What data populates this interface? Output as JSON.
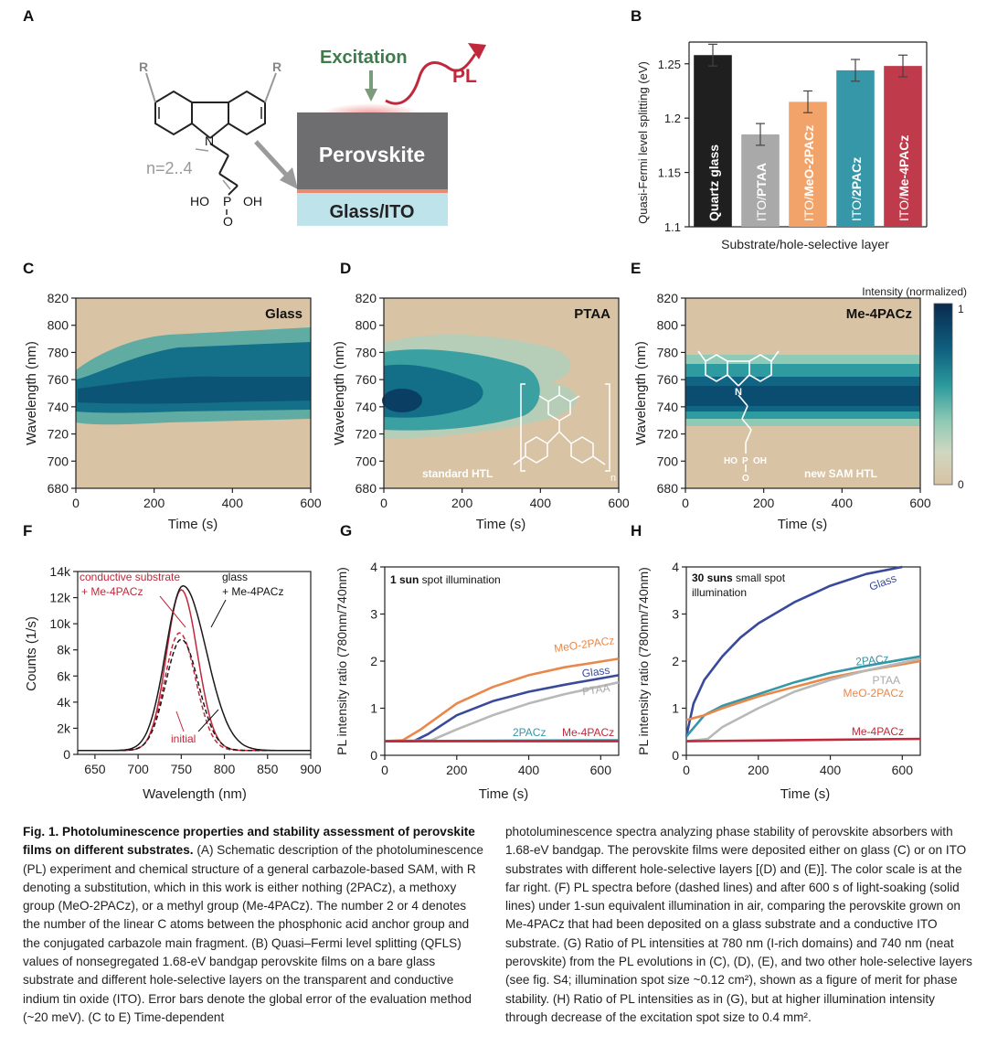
{
  "panels": {
    "A": "A",
    "B": "B",
    "C": "C",
    "D": "D",
    "E": "E",
    "F": "F",
    "G": "G",
    "H": "H"
  },
  "panelA": {
    "excitation": "Excitation",
    "pl": "PL",
    "perovskite": "Perovskite",
    "glass_ito": "Glass/ITO",
    "r_left": "R",
    "r_right": "R",
    "n_label": "n=2..4",
    "nitrogen": "N",
    "ho_left": "HO",
    "p": "P",
    "oh_right": "OH",
    "o_bottom": "O",
    "colors": {
      "excitation": "#3f7a4a",
      "pl": "#c0283b",
      "perovskite": "#6e6e70",
      "glass": "#bfe3ea"
    }
  },
  "panelB": {
    "ylabel": "Quasi-Fermi level splitting (eV)",
    "xlabel": "Substrate/hole-selective layer",
    "yticks": [
      "1.1",
      "1.15",
      "1.2",
      "1.25"
    ]
  },
  "heatmaps": {
    "ylabel": "Wavelength (nm)",
    "xlabel": "Time (s)",
    "yticks": [
      "820",
      "800",
      "780",
      "760",
      "740",
      "720",
      "700",
      "680"
    ],
    "xticks": [
      "0",
      "200",
      "400",
      "600"
    ],
    "C": {
      "title": "Glass"
    },
    "D": {
      "title": "PTAA",
      "note": "standard HTL",
      "subscript": "n"
    },
    "E": {
      "title": "Me-4PACz",
      "note": "new SAM HTL",
      "sam_n": "N",
      "sam_ho": "HO",
      "sam_p": "P",
      "sam_oh": "OH",
      "sam_o": "O"
    },
    "colorbar": {
      "label": "Intensity (normalized)",
      "max": "1",
      "min": "0"
    }
  },
  "panelF": {
    "ylabel": "Counts (1/s)",
    "xlabel": "Wavelength (nm)",
    "yticks": [
      "0",
      "2k",
      "4k",
      "6k",
      "8k",
      "10k",
      "12k",
      "14k"
    ],
    "xticks": [
      "650",
      "700",
      "750",
      "800",
      "850",
      "900"
    ],
    "label_conductive_1": "conductive substrate",
    "label_conductive_2": "+ Me-4PACz",
    "label_glass_1": "glass",
    "label_glass_2": "+ Me-4PACz",
    "label_initial": "initial"
  },
  "panelG": {
    "ylabel": "PL intensity ratio (780nm/740nm)",
    "xlabel": "Time (s)",
    "yticks": [
      "0",
      "1",
      "2",
      "3",
      "4"
    ],
    "xticks": [
      "0",
      "200",
      "400",
      "600"
    ],
    "note_bold": "1 sun",
    "note_rest": " spot illumination"
  },
  "panelH": {
    "ylabel": "PL intensity ratio (780nm/740nm)",
    "xlabel": "Time (s)",
    "yticks": [
      "0",
      "1",
      "2",
      "3",
      "4"
    ],
    "xticks": [
      "0",
      "200",
      "400",
      "600"
    ],
    "note_bold": "30 suns",
    "note_rest": " small spot",
    "note_line2": "illumination"
  },
  "chart_data": [
    {
      "panel": "B",
      "type": "bar",
      "ylim": [
        1.1,
        1.27
      ],
      "categories": [
        "Quartz glass",
        "ITO/PTAA",
        "ITO/MeO-2PACz",
        "ITO/2PACz",
        "ITO/Me-4PACz"
      ],
      "values": [
        1.258,
        1.185,
        1.215,
        1.244,
        1.248
      ],
      "errors": [
        0.01,
        0.01,
        0.01,
        0.01,
        0.01
      ],
      "colors": [
        "#1f1f1f",
        "#a9a9a9",
        "#f2a36a",
        "#3597a8",
        "#bf3a4a"
      ]
    },
    {
      "panel": "F",
      "type": "line",
      "xlim": [
        630,
        900
      ],
      "ylim": [
        0,
        14000
      ],
      "series": [
        {
          "name": "conductive substrate + Me-4PACz",
          "style": "solid",
          "color": "#c0283b",
          "peak": 750,
          "sigma": 17,
          "amp": 12300
        },
        {
          "name": "glass + Me-4PACz",
          "style": "solid",
          "color": "#1a1a1a",
          "peak": 752,
          "sigma": 20,
          "amp": 12600
        },
        {
          "name": "conductive substrate + Me-4PACz initial",
          "style": "dashed",
          "color": "#c0283b",
          "peak": 748,
          "sigma": 17,
          "amp": 9000
        },
        {
          "name": "glass + Me-4PACz initial",
          "style": "dashed",
          "color": "#1a1a1a",
          "peak": 750,
          "sigma": 18,
          "amp": 8500
        }
      ]
    },
    {
      "panel": "G",
      "type": "line",
      "xlim": [
        0,
        650
      ],
      "ylim": [
        0,
        4
      ],
      "series": [
        {
          "name": "MeO-2PACz",
          "color": "#e8884a",
          "x": [
            0,
            50,
            100,
            200,
            300,
            400,
            500,
            650
          ],
          "y": [
            0.3,
            0.32,
            0.55,
            1.1,
            1.45,
            1.7,
            1.87,
            2.05
          ]
        },
        {
          "name": "Glass",
          "color": "#3a4a9a",
          "x": [
            0,
            80,
            120,
            200,
            300,
            400,
            500,
            650
          ],
          "y": [
            0.3,
            0.3,
            0.45,
            0.85,
            1.15,
            1.35,
            1.5,
            1.7
          ]
        },
        {
          "name": "PTAA",
          "color": "#b8b8b8",
          "x": [
            0,
            130,
            200,
            300,
            400,
            500,
            650
          ],
          "y": [
            0.3,
            0.32,
            0.55,
            0.85,
            1.1,
            1.3,
            1.55
          ]
        },
        {
          "name": "2PACz",
          "color": "#3597a8",
          "x": [
            0,
            650
          ],
          "y": [
            0.3,
            0.32
          ]
        },
        {
          "name": "Me-4PACz",
          "color": "#c0283b",
          "x": [
            0,
            650
          ],
          "y": [
            0.3,
            0.3
          ]
        }
      ]
    },
    {
      "panel": "H",
      "type": "line",
      "xlim": [
        0,
        650
      ],
      "ylim": [
        0,
        4
      ],
      "series": [
        {
          "name": "Glass",
          "color": "#3a4a9a",
          "x": [
            0,
            20,
            50,
            100,
            150,
            200,
            300,
            400,
            500,
            600
          ],
          "y": [
            0.4,
            1.1,
            1.6,
            2.1,
            2.5,
            2.8,
            3.25,
            3.6,
            3.85,
            4.05
          ]
        },
        {
          "name": "2PACz",
          "color": "#3597a8",
          "x": [
            0,
            50,
            100,
            200,
            300,
            400,
            500,
            650
          ],
          "y": [
            0.4,
            0.85,
            1.05,
            1.3,
            1.55,
            1.75,
            1.9,
            2.1
          ]
        },
        {
          "name": "MeO-2PACz",
          "color": "#e8884a",
          "x": [
            0,
            50,
            100,
            200,
            300,
            400,
            500,
            650
          ],
          "y": [
            0.75,
            0.85,
            1.0,
            1.25,
            1.45,
            1.65,
            1.8,
            2.0
          ]
        },
        {
          "name": "PTAA",
          "color": "#b8b8b8",
          "x": [
            0,
            60,
            100,
            200,
            300,
            400,
            500,
            650
          ],
          "y": [
            0.3,
            0.35,
            0.6,
            1.0,
            1.35,
            1.6,
            1.8,
            2.05
          ]
        },
        {
          "name": "Me-4PACz",
          "color": "#c0283b",
          "x": [
            0,
            650
          ],
          "y": [
            0.3,
            0.35
          ]
        }
      ]
    }
  ],
  "caption": {
    "left": {
      "title": "Fig. 1. Photoluminescence properties and stability assessment of perovskite films on different substrates.",
      "text": "(A) Schematic description of the photoluminescence (PL) experiment and chemical structure of a general carbazole-based SAM, with R denoting a substitution, which in this work is either nothing (2PACz), a methoxy group (MeO-2PACz), or a methyl group (Me-4PACz). The number 2 or 4 denotes the number of the linear C atoms between the phosphonic acid anchor group and the conjugated carbazole main fragment. (B) Quasi–Fermi level splitting (QFLS) values of nonsegregated 1.68-eV bandgap perovskite films on a bare glass substrate and different hole-selective layers on the transparent and conductive indium tin oxide (ITO). Error bars denote the global error of the evaluation method (~20 meV). (C to E) Time-dependent"
    },
    "right": {
      "text": "photoluminescence spectra analyzing phase stability of perovskite absorbers with 1.68-eV bandgap. The perovskite films were deposited either on glass (C) or on ITO substrates with different hole-selective layers [(D) and (E)]. The color scale is at the far right. (F) PL spectra before (dashed lines) and after 600 s of light-soaking (solid lines) under 1-sun equivalent illumination in air, comparing the perovskite grown on Me-4PACz that had been deposited on a glass substrate and a conductive ITO substrate. (G) Ratio of PL intensities at 780 nm (I-rich domains) and 740 nm (neat perovskite) from the PL evolutions in (C), (D), (E), and two other hole-selective layers (see fig. S4; illumination spot size ~0.12 cm²), shown as a figure of merit for phase stability. (H) Ratio of PL intensities as in (G), but at higher illumination intensity through decrease of the excitation spot size to 0.4 mm²."
    }
  }
}
